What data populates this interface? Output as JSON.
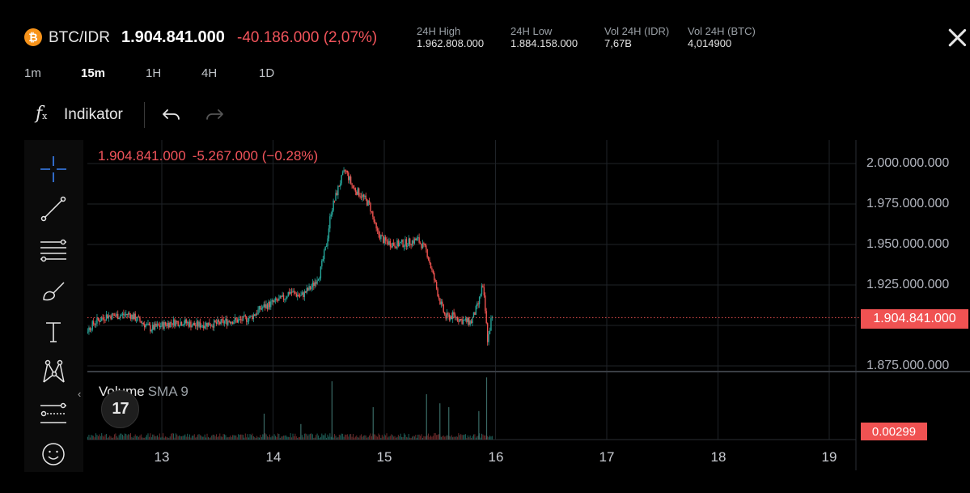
{
  "header": {
    "coin_glyph": "₿",
    "pair": "BTC/IDR",
    "last_price": "1.904.841.000",
    "change": "-40.186.000 (2,07%)",
    "stats": [
      {
        "label": "24H High",
        "value": "1.962.808.000"
      },
      {
        "label": "24H Low",
        "value": "1.884.158.000"
      },
      {
        "label": "Vol 24H (IDR)",
        "value": "7,67B"
      },
      {
        "label": "Vol 24H (BTC)",
        "value": "4,014900"
      }
    ]
  },
  "timeframes": [
    "1m",
    "15m",
    "1H",
    "4H",
    "1D"
  ],
  "active_timeframe": "15m",
  "toolbar": {
    "indicator_glyph": "f",
    "indicator_sub": "x",
    "indicator_label": "Indikator"
  },
  "ohlc": {
    "price": "1.904.841.000",
    "change": "-5.267.000 (−0.28%)"
  },
  "volume_panel": {
    "label": "Volume",
    "sma": "SMA 9",
    "logo_text": "17",
    "current": "0.00299",
    "collapse_glyph": "‹"
  },
  "colors": {
    "up": "#26a69a",
    "down": "#ef5350",
    "tag": "#f05252",
    "grid": "#1f2328"
  },
  "chart_data": {
    "type": "candlestick",
    "price_axis_labels": [
      "2.000.000.000",
      "1.975.000.000",
      "1.950.000.000",
      "1.925.000.000",
      "1.900.000.000",
      "1.875.000.000"
    ],
    "current_price_label": "1.904.841.000",
    "current_price": 1904841000,
    "ylim": [
      1873000000,
      2000000000
    ],
    "x_ticks": [
      "13",
      "14",
      "15",
      "16",
      "17",
      "18",
      "19"
    ],
    "x_range": [
      12.2,
      19.1
    ],
    "close_path": [
      [
        12.22,
        1891000000
      ],
      [
        12.3,
        1895000000
      ],
      [
        12.4,
        1902000000
      ],
      [
        12.5,
        1906000000
      ],
      [
        12.6,
        1906000000
      ],
      [
        12.7,
        1907000000
      ],
      [
        12.8,
        1903000000
      ],
      [
        12.9,
        1898000000
      ],
      [
        13.0,
        1900000000
      ],
      [
        13.1,
        1902000000
      ],
      [
        13.2,
        1902000000
      ],
      [
        13.3,
        1900000000
      ],
      [
        13.4,
        1901000000
      ],
      [
        13.5,
        1901000000
      ],
      [
        13.6,
        1903000000
      ],
      [
        13.7,
        1903000000
      ],
      [
        13.8,
        1905000000
      ],
      [
        13.9,
        1911000000
      ],
      [
        14.0,
        1914000000
      ],
      [
        14.1,
        1917000000
      ],
      [
        14.15,
        1921000000
      ],
      [
        14.25,
        1918000000
      ],
      [
        14.35,
        1924000000
      ],
      [
        14.42,
        1932000000
      ],
      [
        14.48,
        1950000000
      ],
      [
        14.52,
        1970000000
      ],
      [
        14.6,
        1988000000
      ],
      [
        14.65,
        1996000000
      ],
      [
        14.72,
        1985000000
      ],
      [
        14.8,
        1980000000
      ],
      [
        14.87,
        1974000000
      ],
      [
        14.93,
        1958000000
      ],
      [
        15.0,
        1952000000
      ],
      [
        15.1,
        1950000000
      ],
      [
        15.2,
        1951000000
      ],
      [
        15.3,
        1953000000
      ],
      [
        15.38,
        1946000000
      ],
      [
        15.45,
        1928000000
      ],
      [
        15.5,
        1915000000
      ],
      [
        15.55,
        1905000000
      ],
      [
        15.62,
        1906000000
      ],
      [
        15.7,
        1903000000
      ],
      [
        15.78,
        1902000000
      ],
      [
        15.85,
        1914000000
      ],
      [
        15.88,
        1925000000
      ],
      [
        15.9,
        1915000000
      ],
      [
        15.93,
        1890000000
      ],
      [
        15.96,
        1903000000
      ],
      [
        15.98,
        1905000000
      ]
    ],
    "volume_spikes": [
      [
        14.53,
        0.45
      ],
      [
        14.9,
        0.25
      ],
      [
        15.38,
        0.35
      ],
      [
        15.5,
        0.28
      ],
      [
        15.58,
        0.25
      ],
      [
        15.85,
        0.22
      ],
      [
        15.92,
        0.48
      ],
      [
        13.92,
        0.2
      ],
      [
        14.25,
        0.12
      ]
    ]
  }
}
